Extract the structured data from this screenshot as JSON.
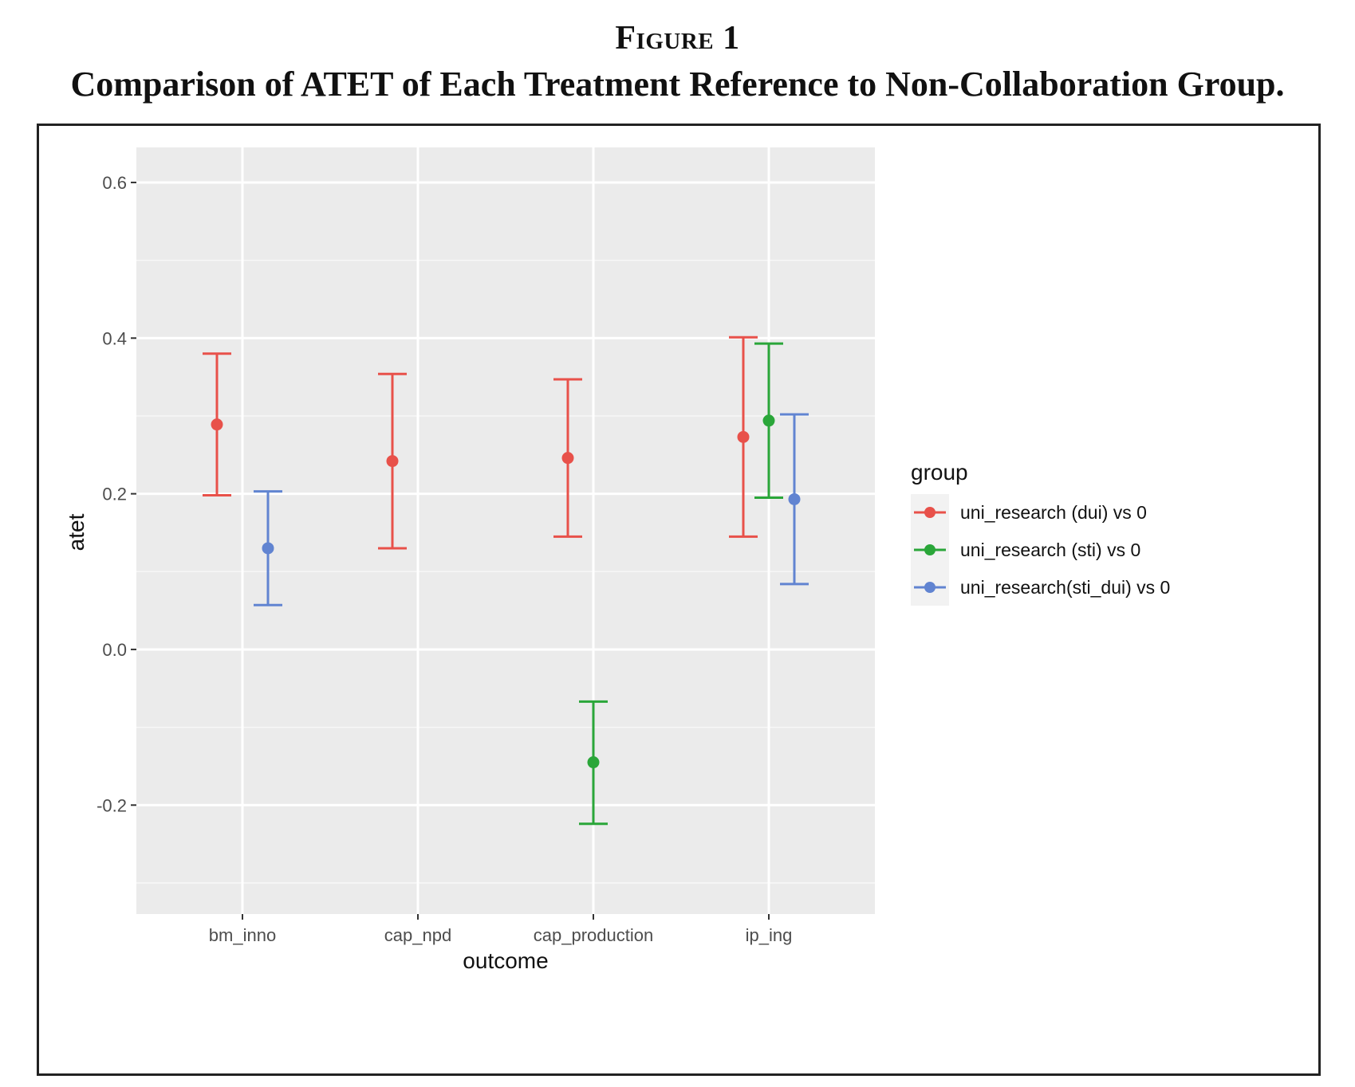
{
  "figure": {
    "label": "Figure 1",
    "title": "Comparison of ATET of Each Treatment Reference to Non-Collaboration Group."
  },
  "chart_data": {
    "type": "scatter",
    "categories": [
      "bm_inno",
      "cap_npd",
      "cap_production",
      "ip_ing"
    ],
    "xlabel": "outcome",
    "ylabel": "atet",
    "ylim": [
      -0.34,
      0.645
    ],
    "yticks": [
      -0.2,
      0.0,
      0.2,
      0.4,
      0.6
    ],
    "ytick_labels": [
      "-0.2",
      "0.0",
      "0.2",
      "0.4",
      "0.6"
    ],
    "grid": true,
    "legend": {
      "title": "group",
      "position": "right"
    },
    "series": [
      {
        "name": "uni_research (dui) vs 0",
        "color": "#e8514a",
        "points": [
          {
            "category": "bm_inno",
            "y": 0.289,
            "lower": 0.198,
            "upper": 0.38
          },
          {
            "category": "cap_npd",
            "y": 0.242,
            "lower": 0.13,
            "upper": 0.354
          },
          {
            "category": "cap_production",
            "y": 0.246,
            "lower": 0.145,
            "upper": 0.347
          },
          {
            "category": "ip_ing",
            "y": 0.273,
            "lower": 0.145,
            "upper": 0.401
          }
        ]
      },
      {
        "name": "uni_research (sti) vs 0",
        "color": "#2aa639",
        "points": [
          {
            "category": "cap_production",
            "y": -0.145,
            "lower": -0.224,
            "upper": -0.067
          },
          {
            "category": "ip_ing",
            "y": 0.294,
            "lower": 0.195,
            "upper": 0.393
          }
        ]
      },
      {
        "name": "uni_research(sti_dui) vs 0",
        "color": "#6184d1",
        "points": [
          {
            "category": "bm_inno",
            "y": 0.13,
            "lower": 0.057,
            "upper": 0.203
          },
          {
            "category": "ip_ing",
            "y": 0.193,
            "lower": 0.084,
            "upper": 0.302
          }
        ]
      }
    ]
  }
}
